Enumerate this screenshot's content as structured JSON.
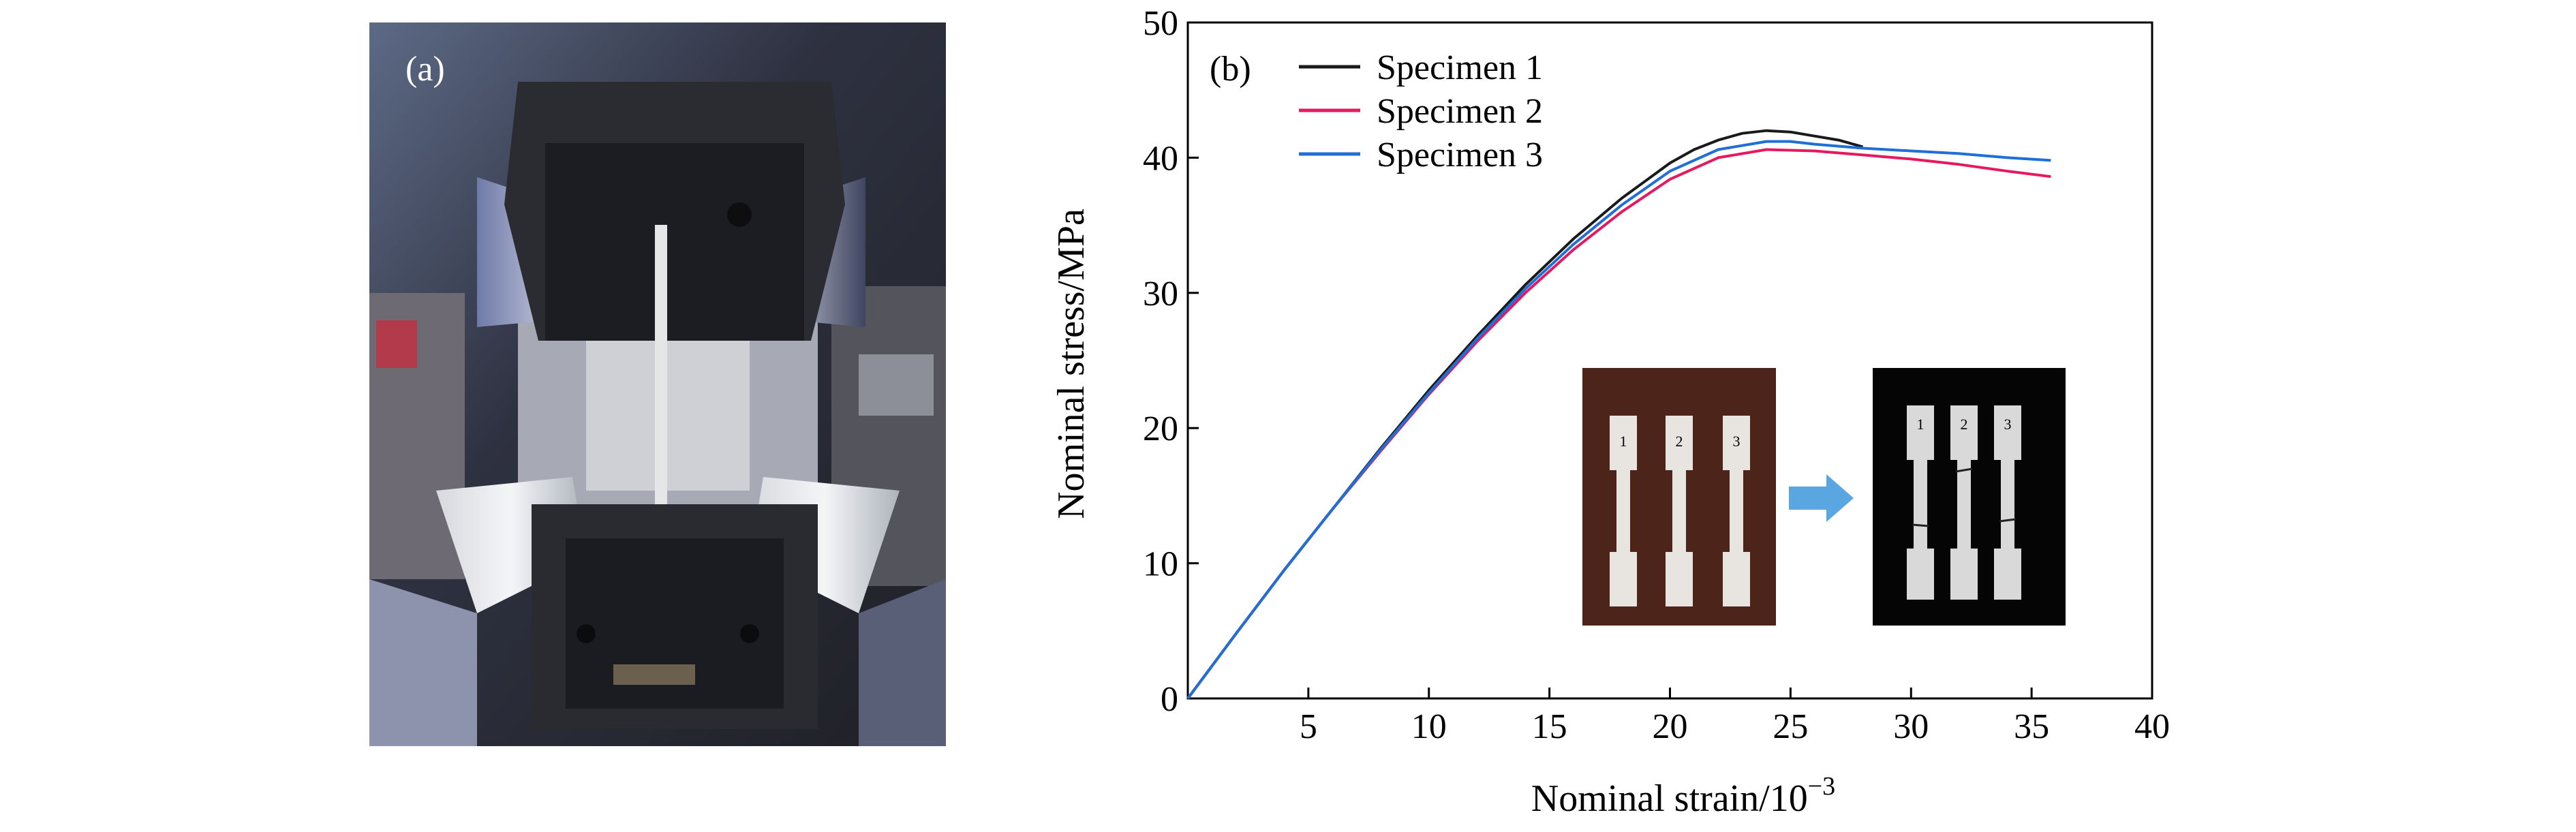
{
  "panel_a": {
    "label": "(a)"
  },
  "chart_data": {
    "type": "line",
    "panel_label": "(b)",
    "title": "",
    "xlabel": "Nominal strain/10",
    "xlabel_exponent": "−3",
    "ylabel": "Nominal stress/MPa",
    "xlim": [
      0,
      40
    ],
    "ylim": [
      0,
      50
    ],
    "xticks": [
      5,
      10,
      15,
      20,
      25,
      30,
      35,
      40
    ],
    "yticks": [
      0,
      10,
      20,
      30,
      40,
      50
    ],
    "grid": false,
    "legend_position": "top-left",
    "series": [
      {
        "name": "Specimen 1",
        "color": "#1a1a1a",
        "x": [
          0,
          2,
          4,
          6,
          8,
          10,
          12,
          14,
          16,
          18,
          20,
          21,
          22,
          23,
          24,
          25,
          26,
          27,
          28
        ],
        "y": [
          0,
          4.8,
          9.5,
          14.0,
          18.5,
          22.8,
          26.8,
          30.6,
          34.0,
          37.0,
          39.6,
          40.6,
          41.3,
          41.8,
          42.0,
          41.9,
          41.6,
          41.3,
          40.8
        ]
      },
      {
        "name": "Specimen 2",
        "color": "#e5195f",
        "x": [
          0,
          2,
          4,
          6,
          8,
          10,
          12,
          14,
          16,
          18,
          20,
          22,
          24,
          26,
          28,
          30,
          32,
          34,
          35.8
        ],
        "y": [
          0,
          4.8,
          9.5,
          14.0,
          18.3,
          22.5,
          26.4,
          30.0,
          33.2,
          36.0,
          38.4,
          40.0,
          40.6,
          40.5,
          40.2,
          39.9,
          39.5,
          39.0,
          38.6
        ]
      },
      {
        "name": "Specimen 3",
        "color": "#1f6fd6",
        "x": [
          0,
          2,
          4,
          6,
          8,
          10,
          12,
          14,
          16,
          18,
          20,
          22,
          24,
          25,
          26,
          28,
          30,
          32,
          34,
          35.8
        ],
        "y": [
          0,
          4.8,
          9.5,
          14.0,
          18.4,
          22.6,
          26.6,
          30.3,
          33.6,
          36.5,
          39.0,
          40.6,
          41.2,
          41.2,
          41.0,
          40.7,
          40.5,
          40.3,
          40.0,
          39.8
        ]
      }
    ]
  },
  "inset": {
    "before_numbers": [
      "1",
      "2",
      "3"
    ],
    "after_numbers": [
      "1",
      "2",
      "3"
    ],
    "arrow_color": "#5aa6e0"
  }
}
